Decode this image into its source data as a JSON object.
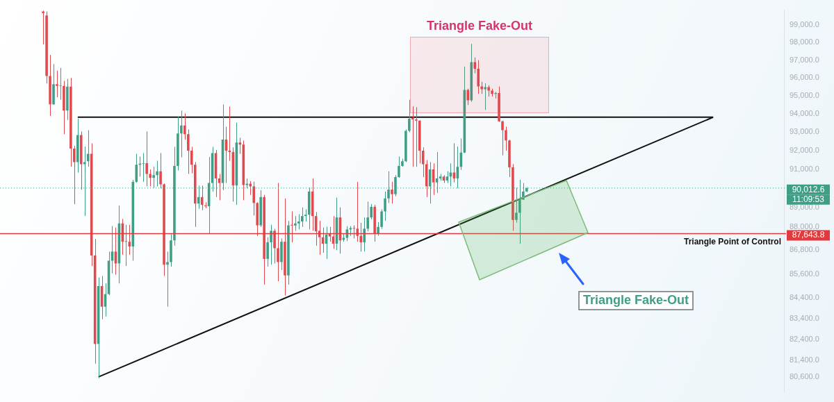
{
  "chart_data": {
    "type": "candlestick",
    "log": true,
    "categories": [
      null,
      null,
      null,
      null,
      null,
      null,
      null,
      null,
      null,
      null,
      null,
      null,
      null,
      null,
      null,
      null,
      null,
      null,
      null,
      null,
      null,
      null,
      null,
      null,
      null,
      null,
      null,
      null,
      null,
      null,
      null,
      null,
      null,
      null,
      null,
      null,
      null,
      null,
      null,
      null,
      null,
      null,
      null,
      null,
      null,
      null,
      null,
      null,
      null,
      null,
      null,
      null,
      null,
      null,
      null,
      null,
      null,
      null,
      null,
      null,
      null,
      null,
      null,
      null,
      null,
      null,
      null,
      null,
      null,
      null,
      null,
      null,
      null,
      null,
      null,
      null,
      null,
      null,
      null,
      null,
      null,
      null,
      null,
      null,
      null,
      null,
      null,
      null,
      null,
      null,
      null,
      null,
      null,
      null,
      null,
      null,
      null,
      null,
      null,
      null,
      null,
      null,
      null,
      null,
      null,
      null,
      null,
      null,
      null,
      null,
      null,
      null,
      null,
      null,
      null,
      null,
      null,
      null,
      null,
      null,
      null,
      null,
      null,
      null,
      null,
      null,
      null,
      null,
      null,
      null,
      null,
      null,
      null,
      null,
      null,
      null,
      null,
      null,
      null,
      null,
      null,
      null,
      null,
      null,
      null,
      null,
      null,
      null,
      null,
      null,
      null,
      null,
      null,
      null,
      null,
      null,
      null,
      null,
      null,
      null,
      null,
      null,
      null,
      null,
      null,
      null,
      null,
      null,
      null,
      null,
      null,
      null,
      null,
      null,
      null,
      null,
      null,
      null,
      null,
      null,
      null,
      null,
      null,
      null,
      null,
      null,
      null,
      null,
      null,
      null,
      null,
      null,
      null,
      null,
      null,
      null,
      null,
      null,
      null,
      null,
      null,
      null,
      null,
      null,
      null,
      null,
      null,
      null,
      null,
      null,
      null,
      null,
      null,
      null,
      null,
      null,
      null,
      null,
      null,
      null,
      null,
      null,
      null,
      null,
      null,
      null,
      null
    ],
    "ylim": [
      79900,
      99880
    ],
    "yticks": [
      {
        "value": 80600,
        "label": "80,600.0"
      },
      {
        "value": 81400,
        "label": "81,400.0"
      },
      {
        "value": 82400,
        "label": "82,400.0"
      },
      {
        "value": 83400,
        "label": "83,400.0"
      },
      {
        "value": 84400,
        "label": "84,400.0"
      },
      {
        "value": 85600,
        "label": "85,600.0"
      },
      {
        "value": 86800,
        "label": "86,800.0"
      },
      {
        "value": 88000,
        "label": "88,000.0"
      },
      {
        "value": 89000,
        "label": "89,000.0"
      },
      {
        "value": 91000,
        "label": "91,000.0"
      },
      {
        "value": 92000,
        "label": "92,000.0"
      },
      {
        "value": 93000,
        "label": "93,000.0"
      },
      {
        "value": 94000,
        "label": "94,000.0"
      },
      {
        "value": 95000,
        "label": "95,000.0"
      },
      {
        "value": 96000,
        "label": "96,000.0"
      },
      {
        "value": 97000,
        "label": "97,000.0"
      },
      {
        "value": 98000,
        "label": "98,000.0"
      },
      {
        "value": 99000,
        "label": "99,000.0"
      }
    ],
    "series": [
      {
        "ohlc": [
          null,
          null,
          null,
          null,
          null,
          null,
          null,
          null,
          null,
          null,
          null,
          null,
          [
            99800,
            99850,
            97900,
            99700
          ],
          [
            99570,
            99800,
            95680,
            96110
          ],
          [
            96110,
            97300,
            93890,
            94530
          ],
          [
            94530,
            96780,
            94500,
            95650
          ],
          [
            95650,
            96410,
            94920,
            95550
          ],
          [
            95550,
            96560,
            94780,
            95580
          ],
          [
            95550,
            95830,
            92890,
            94180
          ],
          [
            94180,
            95950,
            93670,
            95510
          ],
          [
            95510,
            96000,
            91140,
            92110
          ],
          [
            92110,
            92260,
            89170,
            91390
          ],
          [
            91390,
            93740,
            90830,
            92850
          ],
          [
            92850,
            93040,
            89930,
            91280
          ],
          [
            91280,
            92220,
            88550,
            91390
          ],
          [
            91430,
            93110,
            91140,
            91830
          ],
          [
            91830,
            92400,
            86000,
            86530
          ],
          [
            86530,
            87370,
            81230,
            82170
          ],
          [
            82170,
            85430,
            80540,
            85000
          ],
          [
            85000,
            85500,
            83370,
            83980
          ],
          [
            83980,
            85130,
            83500,
            84600
          ],
          [
            84600,
            86730,
            84550,
            86270
          ],
          [
            86270,
            88030,
            85630,
            86730
          ],
          [
            86730,
            87960,
            85570,
            86130
          ],
          [
            86130,
            89100,
            85130,
            88170
          ],
          [
            88170,
            88400,
            86570,
            87230
          ],
          [
            87230,
            88100,
            86000,
            87260
          ],
          [
            87230,
            88100,
            86570,
            86990
          ],
          [
            86990,
            90450,
            86270,
            90340
          ],
          [
            90340,
            91830,
            90300,
            91250
          ],
          [
            91250,
            91690,
            90610,
            91300
          ],
          [
            91300,
            91870,
            90340,
            91330
          ],
          [
            91330,
            93040,
            90100,
            90760
          ],
          [
            90760,
            91000,
            90100,
            90550
          ],
          [
            90550,
            91140,
            90030,
            90690
          ],
          [
            90690,
            91460,
            90100,
            90900
          ],
          [
            90900,
            91870,
            90000,
            90210
          ],
          [
            90210,
            90250,
            85500,
            86070
          ],
          [
            86070,
            86730,
            83980,
            86200
          ],
          [
            86200,
            87630,
            85970,
            87300
          ],
          [
            87300,
            92210,
            87030,
            91180
          ],
          [
            91180,
            93850,
            90940,
            92930
          ],
          [
            92930,
            94180,
            91640,
            93370
          ],
          [
            93370,
            94030,
            92600,
            92890
          ],
          [
            92890,
            93150,
            90760,
            92000
          ],
          [
            92000,
            92210,
            90790,
            91250
          ],
          [
            91250,
            91390,
            87990,
            89200
          ],
          [
            89200,
            90140,
            88930,
            89540
          ],
          [
            89540,
            90140,
            88860,
            89130
          ],
          [
            89100,
            89270,
            88960,
            89060
          ],
          [
            89060,
            91660,
            87630,
            90280
          ],
          [
            90280,
            92210,
            89830,
            91870
          ],
          [
            91870,
            92040,
            89540,
            90520
          ],
          [
            90520,
            90760,
            89370,
            90280
          ],
          [
            90280,
            94520,
            89900,
            92600
          ],
          [
            92600,
            93300,
            90280,
            92000
          ],
          [
            92000,
            94410,
            91460,
            91930
          ],
          [
            91930,
            92180,
            89300,
            90150
          ],
          [
            90150,
            93520,
            89130,
            92440
          ],
          [
            92440,
            92700,
            91830,
            92330
          ],
          [
            92330,
            92550,
            89370,
            90170
          ],
          [
            90170,
            90520,
            90000,
            90240
          ],
          [
            90240,
            90380,
            89650,
            90100
          ],
          [
            90100,
            90350,
            88580,
            89230
          ],
          [
            89230,
            89270,
            87530,
            88070
          ],
          [
            88070,
            89900,
            87990,
            89540
          ],
          [
            89540,
            89650,
            85070,
            86360
          ],
          [
            86360,
            87460,
            85970,
            87200
          ],
          [
            87200,
            88100,
            86070,
            87790
          ],
          [
            87790,
            87890,
            86130,
            86900
          ],
          [
            86900,
            90280,
            85240,
            86200
          ],
          [
            86200,
            87400,
            85800,
            87230
          ],
          [
            87230,
            89470,
            84530,
            85530
          ],
          [
            85530,
            88300,
            85070,
            88070
          ],
          [
            88100,
            88790,
            87200,
            88060
          ],
          [
            88060,
            88550,
            87790,
            88170
          ],
          [
            88170,
            88650,
            87860,
            88270
          ],
          [
            88270,
            89000,
            87990,
            88550
          ],
          [
            88550,
            88900,
            88270,
            88620
          ],
          [
            88620,
            90030,
            87860,
            89830
          ],
          [
            89830,
            90520,
            87790,
            88550
          ],
          [
            88550,
            88760,
            87030,
            87760
          ],
          [
            87790,
            88300,
            86570,
            87460
          ],
          [
            87460,
            87960,
            86670,
            87130
          ],
          [
            87130,
            88000,
            86360,
            87600
          ],
          [
            87630,
            87990,
            87230,
            87500
          ],
          [
            87500,
            88550,
            86870,
            87130
          ],
          [
            87130,
            89510,
            86800,
            88480
          ],
          [
            88480,
            89000,
            86630,
            87300
          ],
          [
            87330,
            87630,
            87230,
            87430
          ],
          [
            87430,
            88030,
            87260,
            87860
          ],
          [
            87860,
            88030,
            87530,
            87930
          ],
          [
            87930,
            88070,
            87400,
            87900
          ],
          [
            87900,
            90340,
            87230,
            87530
          ],
          [
            87530,
            88200,
            86730,
            87200
          ],
          [
            87200,
            88480,
            86730,
            87900
          ],
          [
            87900,
            89300,
            87760,
            88480
          ],
          [
            88480,
            89170,
            88380,
            89030
          ],
          [
            89030,
            89130,
            87230,
            87630
          ],
          [
            87630,
            88240,
            87530,
            87990
          ],
          [
            87990,
            88900,
            87890,
            88790
          ],
          [
            88790,
            89830,
            88310,
            89470
          ],
          [
            89470,
            90900,
            89230,
            89930
          ],
          [
            89930,
            90340,
            89200,
            89690
          ],
          [
            89690,
            90690,
            89580,
            90590
          ],
          [
            90590,
            91690,
            90550,
            91180
          ],
          [
            91180,
            91570,
            91140,
            91430
          ],
          [
            91430,
            93150,
            91390,
            93070
          ],
          [
            93070,
            94780,
            93000,
            93740
          ],
          [
            93770,
            94420,
            91140,
            93700
          ],
          [
            93700,
            94370,
            91140,
            93630
          ],
          [
            93630,
            93650,
            91320,
            92000
          ],
          [
            92000,
            92180,
            90590,
            91280
          ],
          [
            91280,
            91500,
            89540,
            90100
          ],
          [
            90100,
            91390,
            89200,
            91000
          ],
          [
            91000,
            91320,
            89650,
            90310
          ],
          [
            90310,
            91930,
            89760,
            90520
          ],
          [
            90520,
            90760,
            90410,
            90620
          ],
          [
            90620,
            90690,
            90280,
            90410
          ],
          [
            90410,
            90900,
            90280,
            90620
          ],
          [
            90620,
            91320,
            90100,
            90830
          ],
          [
            90830,
            92400,
            90310,
            90520
          ],
          [
            90520,
            92220,
            90000,
            91140
          ],
          [
            91140,
            92660,
            90970,
            91900
          ],
          [
            91900,
            96640,
            91870,
            95330
          ],
          [
            95330,
            95400,
            94490,
            94750
          ],
          [
            94750,
            97930,
            94670,
            96890
          ],
          [
            96890,
            97150,
            96260,
            96520
          ],
          [
            96520,
            97000,
            95110,
            95520
          ],
          [
            95520,
            95780,
            95110,
            95370
          ],
          [
            95370,
            95700,
            94220,
            95480
          ],
          [
            95480,
            95590,
            94960,
            95290
          ],
          [
            95290,
            95400,
            94960,
            95110
          ],
          [
            95110,
            95220,
            94850,
            95150
          ],
          [
            95150,
            95520,
            93560,
            93590
          ],
          [
            93590,
            93630,
            91750,
            93110
          ],
          [
            93110,
            93300,
            92000,
            92550
          ],
          [
            92550,
            92590,
            90590,
            91110
          ],
          [
            91110,
            91280,
            87790,
            88350
          ],
          [
            88350,
            90030,
            88210,
            88720
          ],
          [
            88720,
            90450,
            87130,
            89400
          ],
          [
            89400,
            90280,
            89400,
            89830
          ],
          [
            89830,
            90060,
            89800,
            90010
          ],
          null,
          null,
          null,
          null,
          null,
          null,
          null,
          null,
          null,
          null,
          null,
          null,
          null,
          null,
          null,
          null,
          null,
          null,
          null,
          null,
          null,
          null,
          null,
          null,
          null,
          null,
          null,
          null,
          null,
          null,
          null,
          null,
          null,
          null,
          null,
          null,
          null,
          null,
          null,
          null,
          null,
          null,
          null,
          null,
          null,
          null,
          null,
          null,
          null,
          null,
          null,
          null,
          null,
          null,
          null,
          null,
          null,
          null,
          null,
          null,
          null,
          null,
          null,
          null,
          null,
          null,
          null,
          null,
          null,
          null,
          null,
          null,
          null,
          null
        ],
        "colors": [
          null,
          null,
          null,
          null,
          null,
          null,
          null,
          null,
          null,
          null,
          null,
          null,
          "#e04a4f",
          "#e04a4f",
          "#e04a4f",
          "#3f9f86",
          "#e04a4f",
          "#3f9f86",
          "#e04a4f",
          "#3f9f86",
          "#e04a4f",
          "#e04a4f",
          "#3f9f86",
          "#e04a4f",
          "#3f9f86",
          "#3f9f86",
          "#e04a4f",
          "#e04a4f",
          "#3f9f86",
          "#e04a4f",
          "#3f9f86",
          "#3f9f86",
          "#3f9f86",
          "#e04a4f",
          "#3f9f86",
          "#e04a4f",
          "#3f9f86",
          "#e04a4f",
          "#3f9f86",
          "#3f9f86",
          "#3f9f86",
          "#3f9f86",
          "#e04a4f",
          "#e04a4f",
          "#3f9f86",
          "#3f9f86",
          "#e04a4f",
          "#e04a4f",
          "#3f9f86",
          "#3f9f86",
          "#3f9f86",
          "#3f9f86",
          "#3f9f86",
          "#e04a4f",
          "#e04a4f",
          "#e04a4f",
          "#e04a4f",
          "#3f9f86",
          "#e04a4f",
          "#e04a4f",
          "#3f9f86",
          "#3f9f86",
          "#e04a4f",
          "#e04a4f",
          "#3f9f86",
          "#e04a4f",
          "#e04a4f",
          "#e04a4f",
          "#3f9f86",
          "#e04a4f",
          "#e04a4f",
          "#3f9f86",
          "#e04a4f",
          "#e04a4f",
          "#e04a4f",
          "#3f9f86",
          "#e04a4f",
          "#3f9f86",
          "#3f9f86",
          "#e04a4f",
          "#e04a4f",
          "#3f9f86",
          "#e04a4f",
          "#3f9f86",
          "#e04a4f",
          "#3f9f86",
          "#3f9f86",
          "#3f9f86",
          "#3f9f86",
          "#3f9f86",
          "#e04a4f",
          "#e04a4f",
          "#e04a4f",
          "#e04a4f",
          "#3f9f86",
          "#e04a4f",
          "#e04a4f",
          "#3f9f86",
          "#e04a4f",
          "#3f9f86",
          "#3f9f86",
          "#3f9f86",
          "#e04a4f",
          "#e04a4f",
          "#e04a4f",
          "#3f9f86",
          "#3f9f86",
          "#3f9f86",
          "#e04a4f",
          "#3f9f86",
          "#3f9f86",
          "#3f9f86",
          "#3f9f86",
          "#e04a4f",
          "#3f9f86",
          "#3f9f86",
          "#3f9f86",
          "#3f9f86",
          "#3f9f86",
          "#e04a4f",
          "#e04a4f",
          "#e04a4f",
          "#e04a4f",
          "#e04a4f",
          "#3f9f86",
          "#e04a4f",
          "#3f9f86",
          "#3f9f86",
          "#e04a4f",
          "#3f9f86",
          "#3f9f86",
          "#e04a4f",
          "#3f9f86",
          "#3f9f86",
          "#3f9f86",
          "#e04a4f",
          "#3f9f86",
          "#e04a4f",
          "#e04a4f",
          "#e04a4f",
          "#3f9f86",
          "#e04a4f",
          "#e04a4f",
          "#3f9f86",
          "#e04a4f",
          "#e04a4f",
          "#e04a4f",
          "#e04a4f",
          "#e04a4f",
          "#3f9f86",
          "#3f9f86",
          "#3f9f86",
          "#3f9f86",
          null,
          null,
          null,
          null,
          null,
          null,
          null,
          null,
          null,
          null,
          null,
          null,
          null,
          null,
          null,
          null,
          null,
          null,
          null,
          null,
          null,
          null,
          null,
          null,
          null,
          null,
          null,
          null,
          null,
          null,
          null,
          null,
          null,
          null,
          null,
          null,
          null,
          null,
          null,
          null,
          null,
          null,
          null,
          null,
          null,
          null,
          null,
          null,
          null,
          null,
          null,
          null,
          null,
          null,
          null,
          null,
          null,
          null,
          null,
          null,
          null,
          null,
          null,
          null,
          null,
          null,
          null,
          null,
          null,
          null,
          null,
          null,
          null,
          null
        ]
      },
      {
        "type": "line",
        "color": "#111111",
        "values": [
          null,
          null,
          null,
          null,
          null,
          null,
          null,
          null,
          null,
          null,
          null,
          null,
          null,
          null,
          null,
          null,
          null,
          null,
          null,
          null,
          null,
          null,
          93820,
          null,
          null,
          null,
          null,
          null,
          null,
          null,
          null,
          null,
          null,
          null,
          null,
          null,
          null,
          null,
          null,
          null,
          null,
          null,
          null,
          null,
          null,
          null,
          null,
          null,
          null,
          null,
          null,
          null,
          null,
          null,
          null,
          null,
          null,
          null,
          null,
          null,
          null,
          null,
          null,
          null,
          null,
          null,
          null,
          null,
          null,
          null,
          null,
          null,
          null,
          null,
          null,
          null,
          null,
          null,
          null,
          null,
          null,
          null,
          null,
          null,
          null,
          null,
          null,
          null,
          null,
          null,
          null,
          null,
          null,
          null,
          null,
          null,
          null,
          null,
          null,
          null,
          null,
          null,
          null,
          null,
          null,
          null,
          null,
          null,
          null,
          null,
          null,
          null,
          null,
          null,
          null,
          null,
          null,
          null,
          null,
          null,
          null,
          null,
          null,
          null,
          null,
          null,
          null,
          null,
          null,
          null,
          null,
          null,
          null,
          null,
          null,
          null,
          null,
          null,
          null,
          null,
          null,
          null,
          null,
          null,
          null,
          null,
          null,
          null,
          null,
          null,
          null,
          null,
          null,
          null,
          null,
          null,
          null,
          null,
          null,
          null,
          null,
          null,
          null,
          null,
          null,
          null,
          null,
          null,
          null,
          null,
          null,
          null,
          null,
          null,
          null,
          null,
          null,
          null,
          null,
          null,
          null,
          null,
          null,
          null,
          null,
          null,
          null,
          null,
          null,
          null,
          null,
          null,
          null,
          null,
          null,
          null,
          null,
          null,
          null,
          null,
          null,
          null,
          null,
          null,
          null,
          null,
          93820,
          null,
          null,
          null,
          null,
          null,
          null,
          null,
          null,
          null,
          null,
          null,
          null,
          null,
          null,
          null,
          null,
          null,
          null,
          null,
          null
        ]
      },
      {
        "type": "line",
        "color": "#111111",
        "values": [
          null,
          null,
          null,
          null,
          null,
          null,
          null,
          null,
          null,
          null,
          null,
          null,
          null,
          null,
          null,
          null,
          null,
          null,
          null,
          null,
          null,
          null,
          null,
          null,
          null,
          null,
          null,
          null,
          80600,
          null,
          null,
          null,
          null,
          null,
          null,
          null,
          null,
          null,
          null,
          null,
          null,
          null,
          null,
          null,
          null,
          null,
          null,
          null,
          null,
          null,
          null,
          null,
          null,
          null,
          null,
          null,
          null,
          null,
          null,
          null,
          null,
          null,
          null,
          null,
          null,
          null,
          null,
          null,
          null,
          null,
          null,
          null,
          null,
          null,
          null,
          null,
          null,
          null,
          null,
          null,
          null,
          null,
          null,
          null,
          null,
          null,
          null,
          null,
          null,
          null,
          null,
          null,
          null,
          null,
          null,
          null,
          null,
          null,
          null,
          null,
          null,
          null,
          null,
          null,
          null,
          null,
          null,
          null,
          null,
          null,
          null,
          null,
          null,
          null,
          null,
          null,
          null,
          null,
          null,
          null,
          null,
          null,
          null,
          null,
          null,
          null,
          null,
          null,
          null,
          null,
          null,
          null,
          null,
          null,
          null,
          null,
          null,
          null,
          null,
          null,
          null,
          null,
          null,
          null,
          null,
          null,
          null,
          null,
          null,
          null,
          null,
          null,
          null,
          null,
          null,
          null,
          null,
          null,
          null,
          null,
          null,
          null,
          null,
          null,
          null,
          null,
          null,
          null,
          null,
          null,
          null,
          null,
          null,
          null,
          null,
          null,
          null,
          null,
          null,
          null,
          null,
          null,
          null,
          null,
          null,
          null,
          null,
          null,
          null,
          null,
          null,
          null,
          null,
          null,
          null,
          null,
          null,
          null,
          null,
          null,
          null,
          null,
          null,
          null,
          null,
          null,
          93820,
          null,
          null,
          null,
          null,
          null,
          null,
          null,
          null,
          null,
          null,
          null,
          null,
          null,
          null,
          null,
          null,
          null,
          null,
          null,
          null
        ]
      }
    ],
    "ref_lines": [
      {
        "axis": "y",
        "value": 87643.8,
        "label": "87,643.8",
        "color": "#e0393e",
        "line_style": "solid"
      },
      {
        "axis": "y",
        "value": 90012.6,
        "label": "90,012.6",
        "color": "#3f9f86",
        "line_style": "dotted"
      }
    ],
    "annotations": [
      "Triangle Fake-Out",
      "Triangle Fake-Out",
      "11:09:53",
      "Triangle Point of Control"
    ]
  }
}
